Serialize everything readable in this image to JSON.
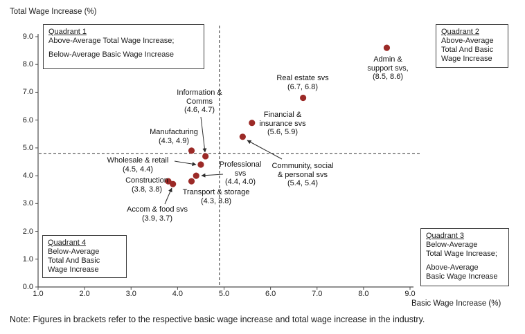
{
  "note": "Note: Figures in brackets refer to the respective basic wage increase and total wage increase in the industry.",
  "chart_data": {
    "type": "scatter",
    "title": "",
    "x_axis": {
      "label": "Basic Wage Increase (%)",
      "min": 1.0,
      "max": 9.0,
      "ticks": [
        "1.0",
        "2.0",
        "3.0",
        "4.0",
        "5.0",
        "6.0",
        "7.0",
        "8.0",
        "9.0"
      ]
    },
    "y_axis": {
      "label": "Total Wage Increase (%)",
      "min": 0.0,
      "max": 9.0,
      "ticks": [
        "0.0",
        "1.0",
        "2.0",
        "3.0",
        "4.0",
        "5.0",
        "6.0",
        "7.0",
        "8.0",
        "9.0"
      ]
    },
    "average_lines": {
      "style": "dashed",
      "vertical_at_basic_wage": 4.9,
      "horizontal_at_total_wage": 4.8
    },
    "point_color": "#9B2A27",
    "grid": false,
    "points": [
      {
        "id": "admin-support",
        "label_lines": [
          "Admin &",
          "support svs,"
        ],
        "coords_label": "(8.5, 8.6)",
        "x": 8.5,
        "y": 8.6
      },
      {
        "id": "real-estate",
        "label_lines": [
          "Real estate svs"
        ],
        "coords_label": "(6.7, 6.8)",
        "x": 6.7,
        "y": 6.8
      },
      {
        "id": "financial-insurance",
        "label_lines": [
          "Financial &",
          "insurance svs"
        ],
        "coords_label": "(5.6, 5.9)",
        "x": 5.6,
        "y": 5.9
      },
      {
        "id": "community-social-personal",
        "label_lines": [
          "Community, social",
          "& personal svs"
        ],
        "coords_label": "(5.4, 5.4)",
        "x": 5.4,
        "y": 5.4
      },
      {
        "id": "professional",
        "label_lines": [
          "Professional",
          "svs"
        ],
        "coords_label": "(4.4, 4.0)",
        "x": 4.4,
        "y": 4.0
      },
      {
        "id": "information-comms",
        "label_lines": [
          "Information &",
          "Comms"
        ],
        "coords_label": "(4.6, 4.7)",
        "x": 4.6,
        "y": 4.7
      },
      {
        "id": "manufacturing",
        "label_lines": [
          "Manufacturing"
        ],
        "coords_label": "(4.3, 4.9)",
        "x": 4.3,
        "y": 4.9
      },
      {
        "id": "wholesale-retail",
        "label_lines": [
          "Wholesale & retail"
        ],
        "coords_label": "(4.5, 4.4)",
        "x": 4.5,
        "y": 4.4
      },
      {
        "id": "transport-storage",
        "label_lines": [
          "Transport & storage"
        ],
        "coords_label": "(4.3, 3.8)",
        "x": 4.3,
        "y": 3.8
      },
      {
        "id": "construction",
        "label_lines": [
          "Construction"
        ],
        "coords_label": "(3.8, 3.8)",
        "x": 3.8,
        "y": 3.8
      },
      {
        "id": "accom-food",
        "label_lines": [
          "Accom & food svs"
        ],
        "coords_label": "(3.9, 3.7)",
        "x": 3.9,
        "y": 3.7
      }
    ],
    "quadrant_boxes": [
      {
        "id": "quadrant-1",
        "title": "Quadrant 1",
        "lines": [
          "Above-Average Total Wage Increase;",
          "",
          "Below-Average Basic Wage Increase"
        ]
      },
      {
        "id": "quadrant-2",
        "title": "Quadrant 2",
        "lines": [
          "Above-Average",
          "Total And Basic",
          "Wage Increase"
        ]
      },
      {
        "id": "quadrant-3",
        "title": "Quadrant 3",
        "lines": [
          "Below-Average",
          "Total Wage Increase;",
          "",
          "Above-Average",
          "Basic Wage Increase"
        ]
      },
      {
        "id": "quadrant-4",
        "title": "Quadrant 4",
        "lines": [
          "Below-Average",
          "Total And Basic",
          "Wage Increase"
        ]
      }
    ]
  }
}
